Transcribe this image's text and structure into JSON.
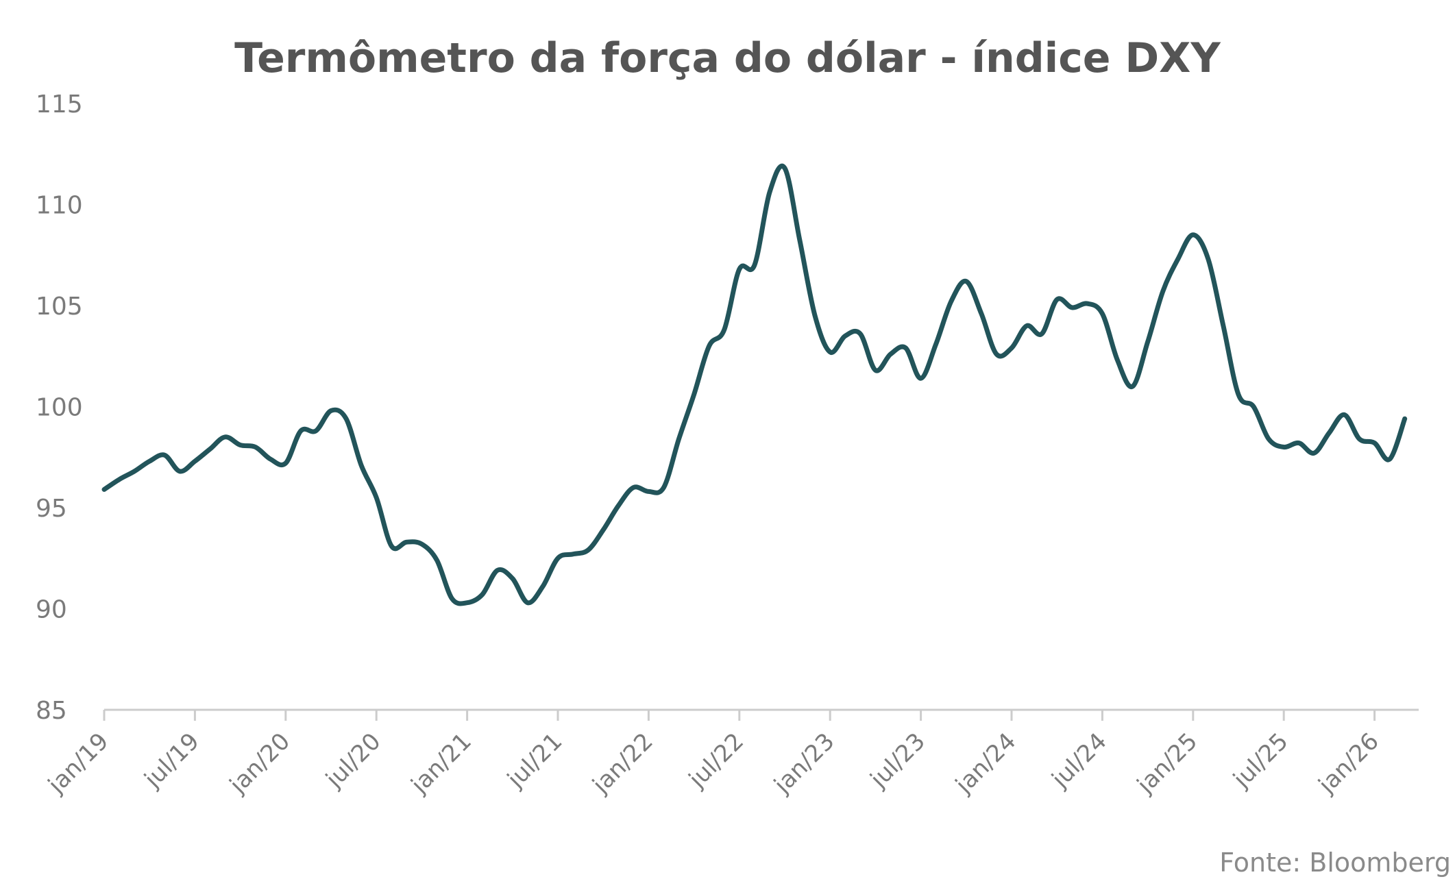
{
  "source": "Fonte: Bloomberg",
  "chart_data": {
    "type": "line",
    "title": "Termômetro da força do dólar - índice DXY",
    "xlabel": "",
    "ylabel": "",
    "ylim": [
      85,
      115
    ],
    "yticks": [
      85,
      90,
      95,
      100,
      105,
      110,
      115
    ],
    "grid": false,
    "legend": "none",
    "line_color": "#22545a",
    "axis_color": "#cccccc",
    "xticks": [
      "jan/19",
      "jul/19",
      "jan/20",
      "jul/20",
      "jan/21",
      "jul/21",
      "jan/22",
      "jul/22",
      "jan/23",
      "jul/23",
      "jan/24",
      "jul/24",
      "jan/25",
      "jul/25",
      "jan/26"
    ],
    "series": [
      {
        "name": "",
        "points": [
          [
            "2019-01",
            95.9
          ],
          [
            "2019-02",
            96.4
          ],
          [
            "2019-03",
            96.8
          ],
          [
            "2019-04",
            97.3
          ],
          [
            "2019-05",
            97.6
          ],
          [
            "2019-06",
            96.8
          ],
          [
            "2019-07",
            97.3
          ],
          [
            "2019-08",
            97.9
          ],
          [
            "2019-09",
            98.5
          ],
          [
            "2019-10",
            98.1
          ],
          [
            "2019-11",
            98.0
          ],
          [
            "2019-12",
            97.4
          ],
          [
            "2020-01",
            97.2
          ],
          [
            "2020-02",
            98.8
          ],
          [
            "2020-03",
            98.8
          ],
          [
            "2020-04",
            99.8
          ],
          [
            "2020-05",
            99.4
          ],
          [
            "2020-06",
            97.1
          ],
          [
            "2020-07",
            95.5
          ],
          [
            "2020-08",
            93.1
          ],
          [
            "2020-09",
            93.3
          ],
          [
            "2020-10",
            93.2
          ],
          [
            "2020-11",
            92.4
          ],
          [
            "2020-12",
            90.5
          ],
          [
            "2021-01",
            90.3
          ],
          [
            "2021-02",
            90.7
          ],
          [
            "2021-03",
            91.9
          ],
          [
            "2021-04",
            91.5
          ],
          [
            "2021-05",
            90.3
          ],
          [
            "2021-06",
            91.1
          ],
          [
            "2021-07",
            92.5
          ],
          [
            "2021-08",
            92.7
          ],
          [
            "2021-09",
            92.9
          ],
          [
            "2021-10",
            93.9
          ],
          [
            "2021-11",
            95.1
          ],
          [
            "2021-12",
            96.0
          ],
          [
            "2022-01",
            95.8
          ],
          [
            "2022-02",
            96.0
          ],
          [
            "2022-03",
            98.4
          ],
          [
            "2022-04",
            100.6
          ],
          [
            "2022-05",
            103.0
          ],
          [
            "2022-06",
            103.8
          ],
          [
            "2022-07",
            106.8
          ],
          [
            "2022-08",
            107.0
          ],
          [
            "2022-09",
            110.6
          ],
          [
            "2022-10",
            111.8
          ],
          [
            "2022-11",
            108.2
          ],
          [
            "2022-12",
            104.5
          ],
          [
            "2023-01",
            102.7
          ],
          [
            "2023-02",
            103.5
          ],
          [
            "2023-03",
            103.6
          ],
          [
            "2023-04",
            101.8
          ],
          [
            "2023-05",
            102.6
          ],
          [
            "2023-06",
            102.9
          ],
          [
            "2023-07",
            101.4
          ],
          [
            "2023-08",
            103.1
          ],
          [
            "2023-09",
            105.2
          ],
          [
            "2023-10",
            106.2
          ],
          [
            "2023-11",
            104.6
          ],
          [
            "2023-12",
            102.6
          ],
          [
            "2024-01",
            102.9
          ],
          [
            "2024-02",
            104.0
          ],
          [
            "2024-03",
            103.6
          ],
          [
            "2024-04",
            105.3
          ],
          [
            "2024-05",
            104.9
          ],
          [
            "2024-06",
            105.1
          ],
          [
            "2024-07",
            104.6
          ],
          [
            "2024-08",
            102.3
          ],
          [
            "2024-09",
            101.0
          ],
          [
            "2024-10",
            103.2
          ],
          [
            "2024-11",
            105.7
          ],
          [
            "2024-12",
            107.3
          ],
          [
            "2025-01",
            108.5
          ],
          [
            "2025-02",
            107.3
          ],
          [
            "2025-03",
            104.0
          ],
          [
            "2025-04",
            100.6
          ],
          [
            "2025-05",
            100.0
          ],
          [
            "2025-06",
            98.4
          ],
          [
            "2025-07",
            98.0
          ],
          [
            "2025-08",
            98.2
          ],
          [
            "2025-09",
            97.7
          ],
          [
            "2025-10",
            98.7
          ],
          [
            "2025-11",
            99.6
          ],
          [
            "2025-12",
            98.4
          ],
          [
            "2026-01",
            98.2
          ],
          [
            "2026-02",
            97.4
          ],
          [
            "2026-03",
            99.4
          ]
        ]
      }
    ]
  }
}
